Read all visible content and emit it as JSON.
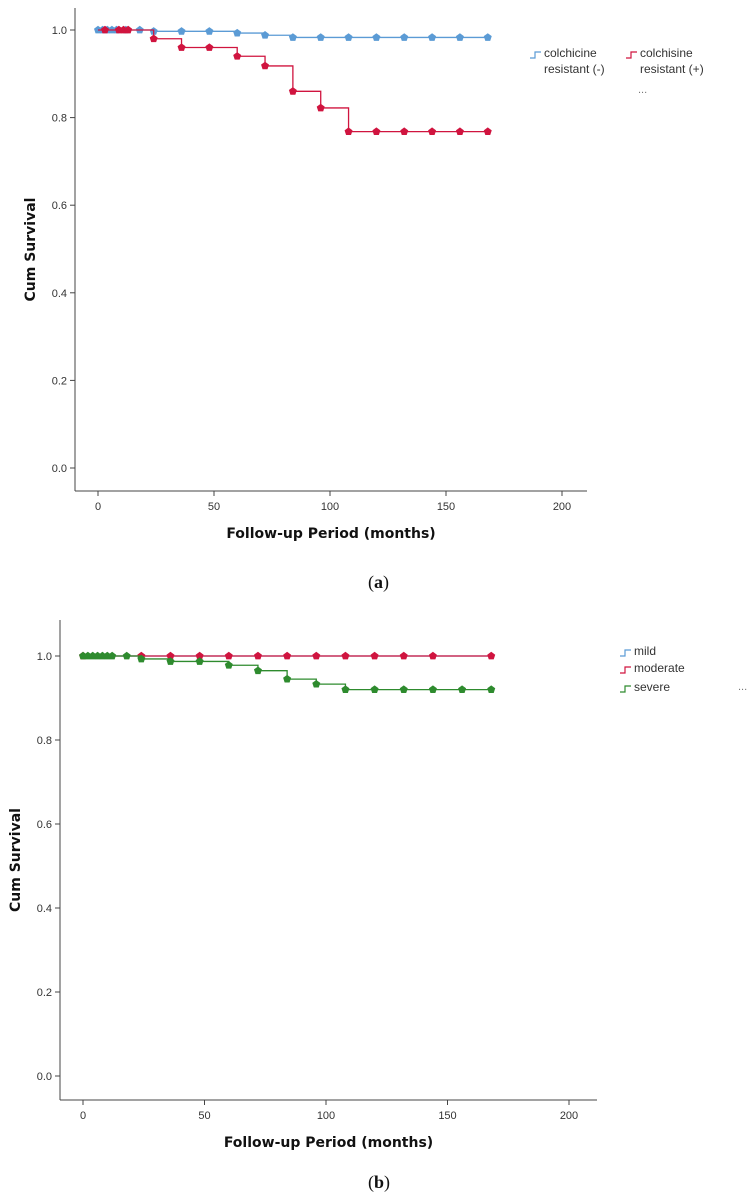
{
  "chart_data": [
    {
      "type": "line",
      "xlabel": "Follow-up Period (months)",
      "ylabel": "Cum Survival",
      "xlim": [
        0,
        200
      ],
      "ylim": [
        0.0,
        1.0
      ],
      "x_ticks": [
        0,
        50,
        100,
        150,
        200
      ],
      "y_ticks": [
        0.0,
        0.2,
        0.4,
        0.6,
        0.8,
        1.0
      ],
      "legend_position": "right",
      "legend_more": "...",
      "panel_label": "a",
      "series": [
        {
          "name": "colchicine resistant (-)",
          "color": "#5b9bd5",
          "steps": [
            [
              0,
              1.0
            ],
            [
              24,
              0.997
            ],
            [
              60,
              0.993
            ],
            [
              72,
              0.988
            ],
            [
              84,
              0.983
            ],
            [
              168,
              0.983
            ]
          ],
          "censored": [
            [
              0,
              1.0
            ],
            [
              2,
              1.0
            ],
            [
              4,
              1.0
            ],
            [
              6,
              1.0
            ],
            [
              8,
              1.0
            ],
            [
              12,
              1.0
            ],
            [
              18,
              1.0
            ],
            [
              24,
              0.997
            ],
            [
              36,
              0.997
            ],
            [
              48,
              0.997
            ],
            [
              60,
              0.993
            ],
            [
              72,
              0.988
            ],
            [
              84,
              0.983
            ],
            [
              96,
              0.983
            ],
            [
              108,
              0.983
            ],
            [
              120,
              0.983
            ],
            [
              132,
              0.983
            ],
            [
              144,
              0.983
            ],
            [
              156,
              0.983
            ],
            [
              168,
              0.983
            ]
          ]
        },
        {
          "name": "colchisine resistant (+)",
          "color": "#d0143f",
          "steps": [
            [
              0,
              1.0
            ],
            [
              24,
              0.98
            ],
            [
              36,
              0.96
            ],
            [
              60,
              0.94
            ],
            [
              72,
              0.918
            ],
            [
              84,
              0.86
            ],
            [
              96,
              0.822
            ],
            [
              108,
              0.768
            ],
            [
              168,
              0.768
            ]
          ],
          "censored": [
            [
              3,
              1.0
            ],
            [
              9,
              1.0
            ],
            [
              11,
              1.0
            ],
            [
              13,
              1.0
            ],
            [
              24,
              0.98
            ],
            [
              36,
              0.96
            ],
            [
              48,
              0.96
            ],
            [
              60,
              0.94
            ],
            [
              72,
              0.918
            ],
            [
              84,
              0.86
            ],
            [
              96,
              0.822
            ],
            [
              108,
              0.768
            ],
            [
              120,
              0.768
            ],
            [
              132,
              0.768
            ],
            [
              144,
              0.768
            ],
            [
              156,
              0.768
            ],
            [
              168,
              0.768
            ]
          ]
        }
      ]
    },
    {
      "type": "line",
      "xlabel": "Follow-up Period (months)",
      "ylabel": "Cum Survival",
      "xlim": [
        0,
        200
      ],
      "ylim": [
        0.0,
        1.0
      ],
      "x_ticks": [
        0,
        50,
        100,
        150,
        200
      ],
      "y_ticks": [
        0.0,
        0.2,
        0.4,
        0.6,
        0.8,
        1.0
      ],
      "legend_position": "right",
      "legend_more": "...",
      "panel_label": "b",
      "series": [
        {
          "name": "mild",
          "color": "#5b9bd5",
          "steps": [
            [
              0,
              1.0
            ],
            [
              168,
              1.0
            ]
          ],
          "censored": []
        },
        {
          "name": "moderate",
          "color": "#d0143f",
          "steps": [
            [
              0,
              1.0
            ],
            [
              168,
              1.0
            ]
          ],
          "censored": [
            [
              0,
              1.0
            ],
            [
              24,
              1.0
            ],
            [
              36,
              1.0
            ],
            [
              48,
              1.0
            ],
            [
              60,
              1.0
            ],
            [
              72,
              1.0
            ],
            [
              84,
              1.0
            ],
            [
              96,
              1.0
            ],
            [
              108,
              1.0
            ],
            [
              120,
              1.0
            ],
            [
              132,
              1.0
            ],
            [
              144,
              1.0
            ],
            [
              168,
              1.0
            ]
          ]
        },
        {
          "name": "severe",
          "color": "#2e8b2e",
          "steps": [
            [
              0,
              1.0
            ],
            [
              24,
              0.993
            ],
            [
              36,
              0.987
            ],
            [
              60,
              0.978
            ],
            [
              72,
              0.965
            ],
            [
              84,
              0.945
            ],
            [
              96,
              0.933
            ],
            [
              108,
              0.92
            ],
            [
              168,
              0.92
            ]
          ],
          "censored": [
            [
              0,
              1.0
            ],
            [
              2,
              1.0
            ],
            [
              4,
              1.0
            ],
            [
              6,
              1.0
            ],
            [
              8,
              1.0
            ],
            [
              10,
              1.0
            ],
            [
              12,
              1.0
            ],
            [
              18,
              1.0
            ],
            [
              24,
              0.993
            ],
            [
              36,
              0.987
            ],
            [
              48,
              0.987
            ],
            [
              60,
              0.978
            ],
            [
              72,
              0.965
            ],
            [
              84,
              0.945
            ],
            [
              96,
              0.933
            ],
            [
              108,
              0.92
            ],
            [
              120,
              0.92
            ],
            [
              132,
              0.92
            ],
            [
              144,
              0.92
            ],
            [
              156,
              0.92
            ],
            [
              168,
              0.92
            ]
          ]
        }
      ]
    }
  ]
}
